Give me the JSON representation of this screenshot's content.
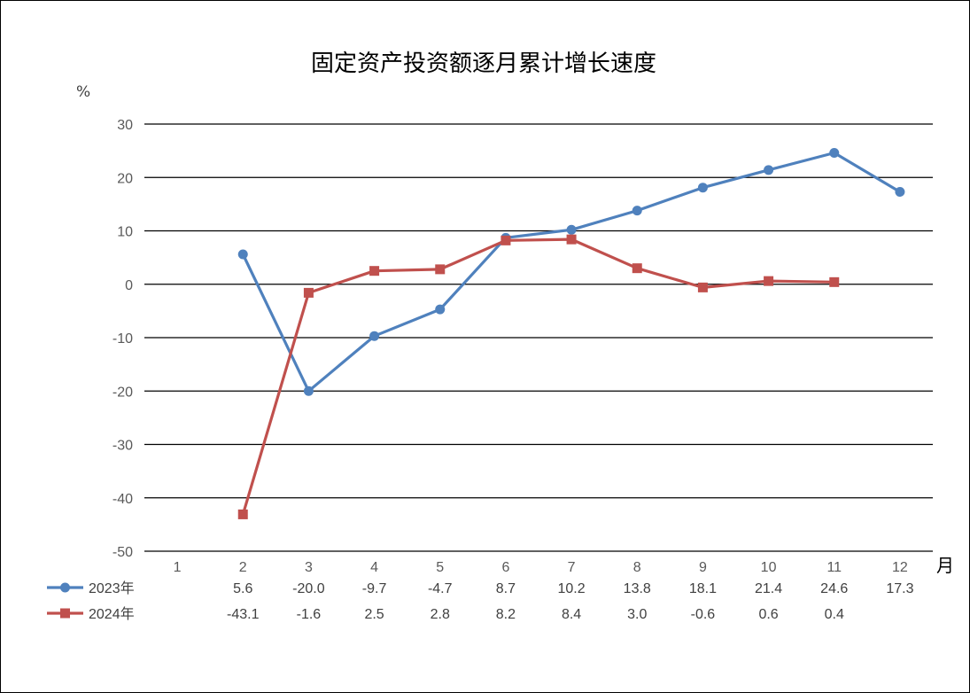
{
  "chart_data": {
    "type": "line",
    "title": "固定资产投资额逐月累计增长速度",
    "y_unit": "%",
    "x_unit": "月",
    "ylim": [
      -50,
      30
    ],
    "yticks": [
      30,
      20,
      10,
      0,
      -10,
      -20,
      -30,
      -40,
      -50
    ],
    "categories": [
      "1",
      "2",
      "3",
      "4",
      "5",
      "6",
      "7",
      "8",
      "9",
      "10",
      "11",
      "12"
    ],
    "grid": "horizontal",
    "legend": "data-table-left",
    "series": [
      {
        "name": "2023年",
        "color": "#4F81BD",
        "marker": "circle",
        "values": [
          null,
          5.6,
          -20.0,
          -9.7,
          -4.7,
          8.7,
          10.2,
          13.8,
          18.1,
          21.4,
          24.6,
          17.3
        ],
        "labels": [
          "",
          "5.6",
          "-20.0",
          "-9.7",
          "-4.7",
          "8.7",
          "10.2",
          "13.8",
          "18.1",
          "21.4",
          "24.6",
          "17.3"
        ]
      },
      {
        "name": "2024年",
        "color": "#C0504D",
        "marker": "square",
        "values": [
          null,
          -43.1,
          -1.6,
          2.5,
          2.8,
          8.2,
          8.4,
          3.0,
          -0.6,
          0.6,
          0.4,
          null
        ],
        "labels": [
          "",
          "-43.1",
          "-1.6",
          "2.5",
          "2.8",
          "8.2",
          "8.4",
          "3.0",
          "-0.6",
          "0.6",
          "0.4",
          ""
        ]
      }
    ]
  }
}
